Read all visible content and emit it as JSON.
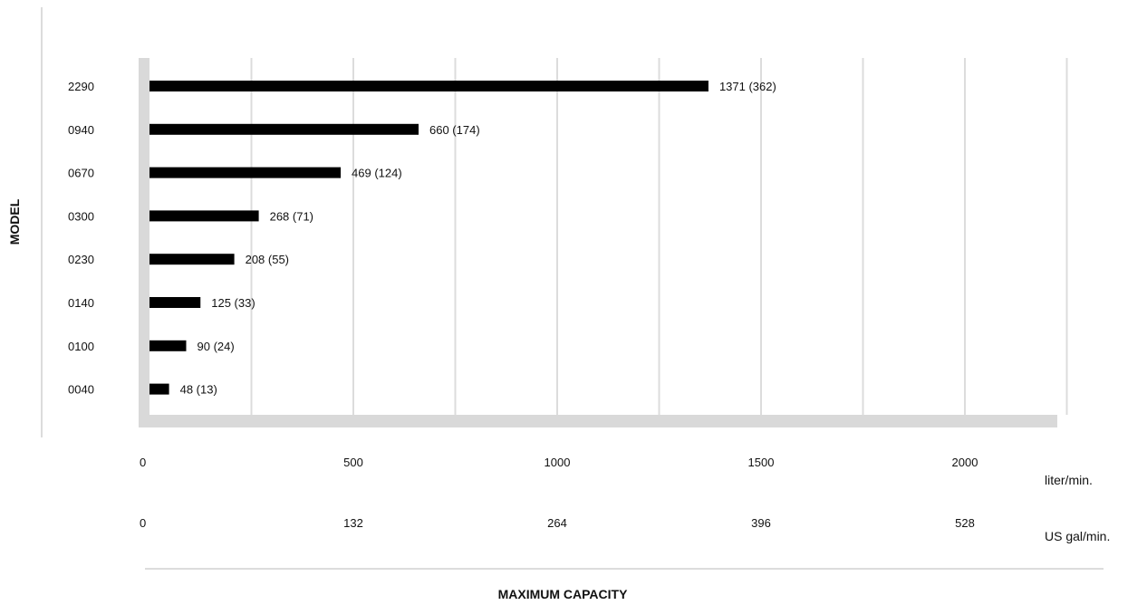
{
  "chart_data": {
    "type": "bar",
    "orientation": "horizontal",
    "categories": [
      "2290",
      "0940",
      "0670",
      "0300",
      "0230",
      "0140",
      "0100",
      "0040"
    ],
    "series": [
      {
        "values": [
          1371,
          660,
          469,
          268,
          208,
          125,
          90,
          48
        ]
      }
    ],
    "data_labels": [
      "1371 (362)",
      "660 (174)",
      "469 (124)",
      "268 (71)",
      "208 (55)",
      "125 (33)",
      "90 (24)",
      "48 (13)"
    ],
    "xlim": [
      0,
      2250
    ],
    "x_ticks_primary": [
      "0",
      "500",
      "1000",
      "1500",
      "2000"
    ],
    "x_ticks_primary_values": [
      0,
      500,
      1000,
      1500,
      2000
    ],
    "x_unit_primary": "liter/min.",
    "x_ticks_secondary": [
      "0",
      "132",
      "264",
      "396",
      "528"
    ],
    "x_unit_secondary": "US gal/min.",
    "xlabel": "MAXIMUM CAPACITY",
    "ylabel": "MODEL",
    "grid": true,
    "colors": {
      "bar": "#000000",
      "grid": "#dcdcdc",
      "axis": "#d9d9d9"
    }
  }
}
